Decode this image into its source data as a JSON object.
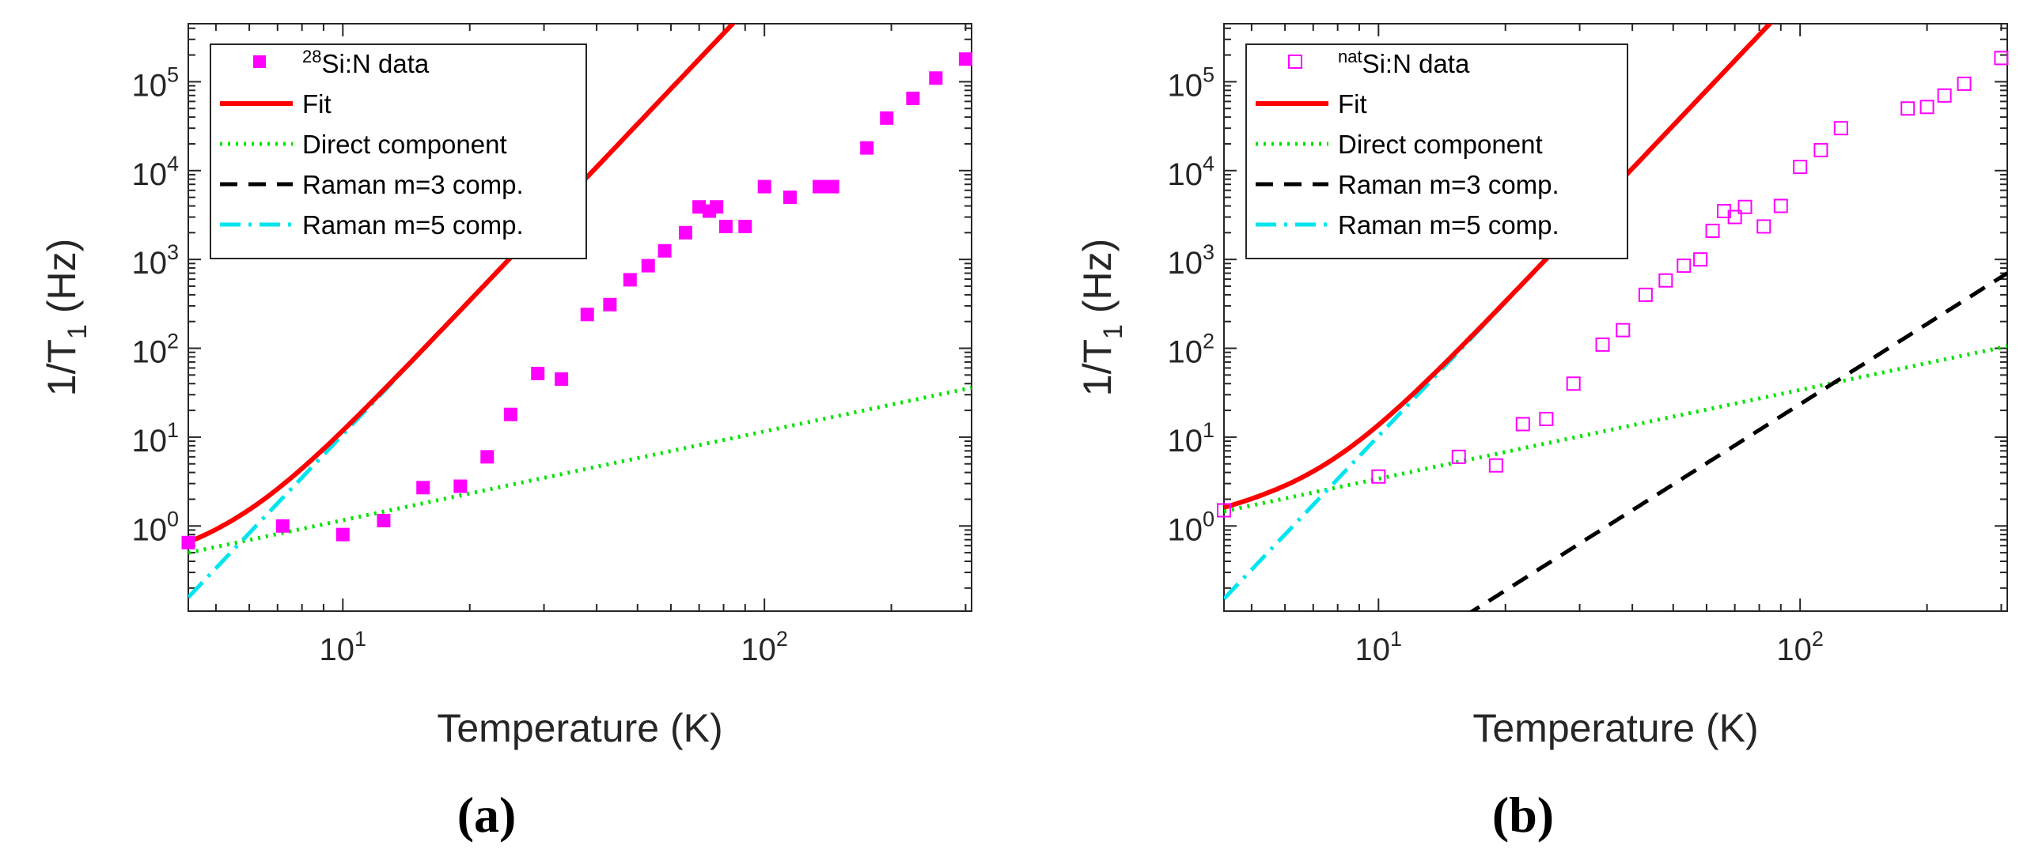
{
  "chart_data": [
    {
      "type": "scatter",
      "panel_label": "(a)",
      "xlabel": "Temperature (K)",
      "ylabel_main": "1/T",
      "ylabel_sub": "1",
      "ylabel_unit": " (Hz)",
      "xscale": "log",
      "yscale": "log",
      "xlim": [
        4.3,
        310
      ],
      "ylim": [
        0.11,
        450000
      ],
      "x_ticks": [
        {
          "base": "10",
          "exp": "1",
          "value": 10
        },
        {
          "base": "10",
          "exp": "2",
          "value": 100
        }
      ],
      "y_ticks": [
        {
          "base": "10",
          "exp": "0",
          "value": 1
        },
        {
          "base": "10",
          "exp": "1",
          "value": 10
        },
        {
          "base": "10",
          "exp": "2",
          "value": 100
        },
        {
          "base": "10",
          "exp": "3",
          "value": 1000
        },
        {
          "base": "10",
          "exp": "4",
          "value": 10000
        },
        {
          "base": "10",
          "exp": "5",
          "value": 100000
        }
      ],
      "legend_position": "top-left",
      "model": {
        "A": 0.116,
        "B3": 0,
        "B5": 0.000107,
        "x_max": 310
      },
      "legend": [
        {
          "kind": "data",
          "sup": "28",
          "text": "Si:N data"
        },
        {
          "kind": "fit",
          "text": "Fit"
        },
        {
          "kind": "direct",
          "text": "Direct component"
        },
        {
          "kind": "raman3",
          "text": "Raman m=3 comp."
        },
        {
          "kind": "raman5",
          "text": "Raman m=5 comp."
        }
      ],
      "data_marker": "filled-square",
      "data_points": [
        [
          4.3,
          0.65
        ],
        [
          7.2,
          1.0
        ],
        [
          10,
          0.8
        ],
        [
          12.5,
          1.15
        ],
        [
          15.5,
          2.7
        ],
        [
          19,
          2.8
        ],
        [
          22,
          6
        ],
        [
          25,
          18
        ],
        [
          29,
          52
        ],
        [
          33,
          45
        ],
        [
          38,
          240
        ],
        [
          43,
          310
        ],
        [
          48,
          590
        ],
        [
          53,
          850
        ],
        [
          58,
          1250
        ],
        [
          65,
          2000
        ],
        [
          70,
          3900
        ],
        [
          74,
          3500
        ],
        [
          77,
          3900
        ],
        [
          81,
          2350
        ],
        [
          90,
          2350
        ],
        [
          100,
          6600
        ],
        [
          115,
          5000
        ],
        [
          135,
          6600
        ],
        [
          145,
          6600
        ],
        [
          175,
          18000
        ],
        [
          195,
          39000
        ],
        [
          225,
          65000
        ],
        [
          255,
          110000
        ],
        [
          300,
          180000
        ]
      ]
    },
    {
      "type": "scatter",
      "panel_label": "(b)",
      "xlabel": "Temperature (K)",
      "ylabel_main": "1/T",
      "ylabel_sub": "1",
      "ylabel_unit": " (Hz)",
      "xscale": "log",
      "yscale": "log",
      "xlim": [
        4.3,
        310
      ],
      "ylim": [
        0.11,
        450000
      ],
      "x_ticks": [
        {
          "base": "10",
          "exp": "1",
          "value": 10
        },
        {
          "base": "10",
          "exp": "2",
          "value": 100
        }
      ],
      "y_ticks": [
        {
          "base": "10",
          "exp": "0",
          "value": 1
        },
        {
          "base": "10",
          "exp": "1",
          "value": 10
        },
        {
          "base": "10",
          "exp": "2",
          "value": 100
        },
        {
          "base": "10",
          "exp": "3",
          "value": 1000
        },
        {
          "base": "10",
          "exp": "4",
          "value": 10000
        },
        {
          "base": "10",
          "exp": "5",
          "value": 100000
        }
      ],
      "legend_position": "top-left",
      "model": {
        "A": 0.34,
        "B3": 2.35e-05,
        "B5": 0.000103,
        "x_max": 310
      },
      "legend": [
        {
          "kind": "data",
          "sup": "nat",
          "text": "Si:N data"
        },
        {
          "kind": "fit",
          "text": "Fit"
        },
        {
          "kind": "direct",
          "text": "Direct component"
        },
        {
          "kind": "raman3",
          "text": "Raman m=3 comp."
        },
        {
          "kind": "raman5",
          "text": "Raman m=5 comp."
        }
      ],
      "data_marker": "open-square",
      "data_points": [
        [
          4.3,
          1.5
        ],
        [
          10,
          3.6
        ],
        [
          15.5,
          6
        ],
        [
          19,
          4.8
        ],
        [
          22,
          14
        ],
        [
          25,
          16
        ],
        [
          29,
          40
        ],
        [
          34,
          110
        ],
        [
          38,
          160
        ],
        [
          43,
          400
        ],
        [
          48,
          580
        ],
        [
          53,
          850
        ],
        [
          58,
          1000
        ],
        [
          62,
          2100
        ],
        [
          66,
          3500
        ],
        [
          70,
          3000
        ],
        [
          74,
          3900
        ],
        [
          82,
          2350
        ],
        [
          90,
          4000
        ],
        [
          100,
          11000
        ],
        [
          112,
          17000
        ],
        [
          125,
          30000
        ],
        [
          180,
          50000
        ],
        [
          200,
          52000
        ],
        [
          220,
          70000
        ],
        [
          245,
          95000
        ],
        [
          300,
          185000
        ]
      ]
    }
  ],
  "colors": {
    "data": "#ff00ff",
    "fit": "#ff0000",
    "direct": "#00e400",
    "raman3": "#000000",
    "raman5": "#00e5ee",
    "axes": "#262626"
  }
}
